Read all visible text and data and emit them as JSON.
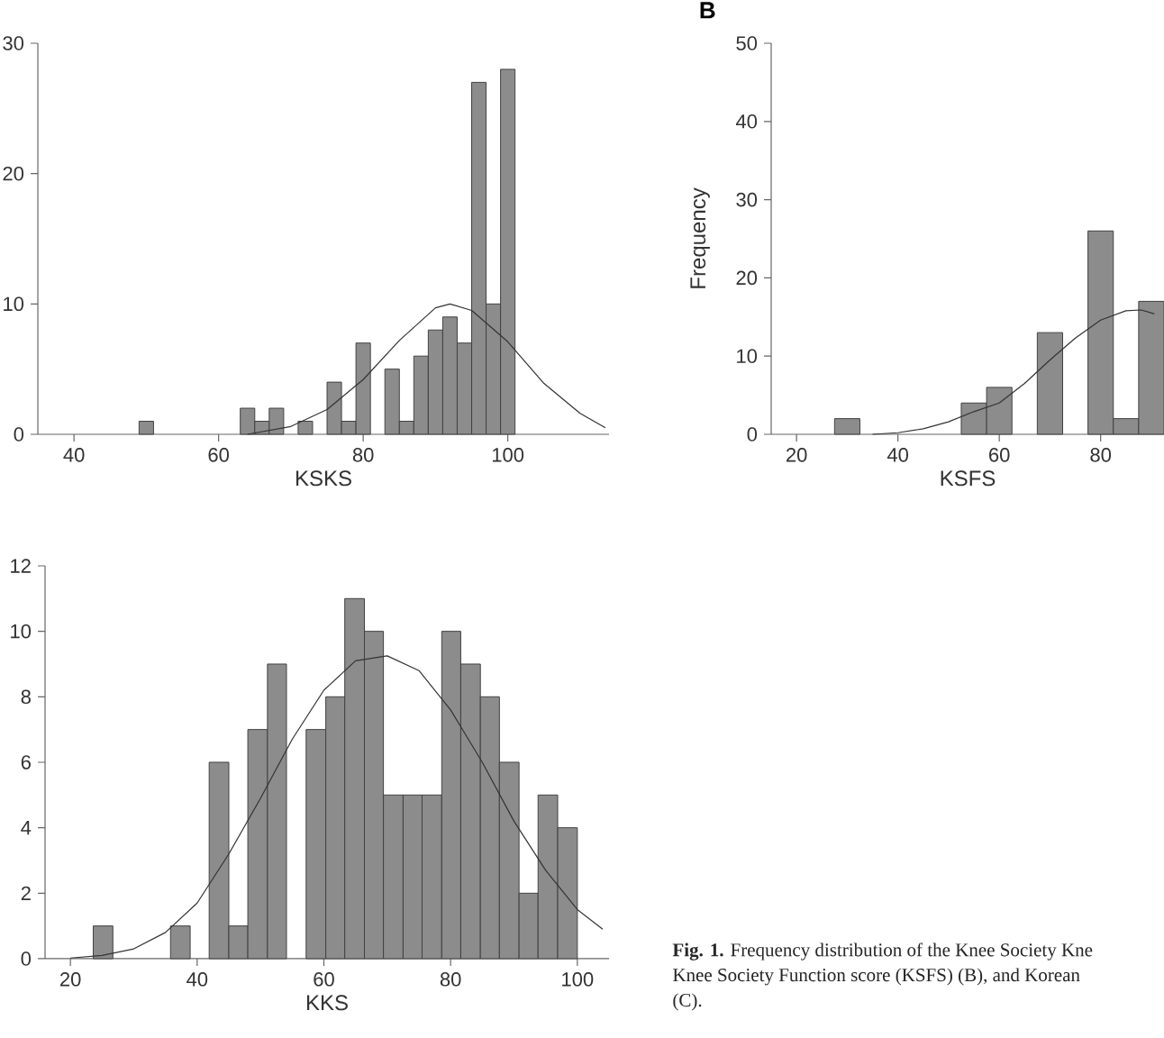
{
  "chart_data": [
    {
      "type": "histogram",
      "xlabel": "KSKS",
      "xlim": [
        35,
        114
      ],
      "xticks": [
        40,
        60,
        80,
        100
      ],
      "ylim": [
        0,
        30
      ],
      "yticks": [
        0,
        10,
        20,
        30
      ],
      "series": [
        {
          "color": "#8c8c8c",
          "bins": [
            49,
            51,
            63,
            65,
            67,
            69,
            71,
            73,
            75,
            77,
            79,
            81,
            83,
            85,
            87,
            89,
            91,
            93,
            95,
            97,
            99,
            101
          ],
          "values": [
            1,
            0,
            2,
            1,
            2,
            0,
            1,
            0,
            4,
            1,
            7,
            0,
            5,
            1,
            6,
            8,
            9,
            7,
            27,
            10,
            28
          ]
        },
        {
          "type": "line",
          "color": "#333333",
          "x": [
            64,
            66,
            70,
            75,
            80,
            85,
            90,
            92,
            95,
            100,
            105,
            110,
            113.5
          ],
          "values": [
            0,
            0.2,
            0.6,
            1.9,
            4.2,
            7.2,
            9.7,
            10,
            9.5,
            7.1,
            3.9,
            1.6,
            0.5
          ]
        }
      ]
    },
    {
      "type": "histogram",
      "title": "B",
      "xlabel": "KSFS",
      "ylabel": "Frequency",
      "xlim": [
        15,
        92.5
      ],
      "xticks": [
        20,
        40,
        60,
        80
      ],
      "ylim": [
        0,
        50
      ],
      "yticks": [
        0,
        10,
        20,
        30,
        40,
        50
      ],
      "series": [
        {
          "color": "#8c8c8c",
          "bins": [
            27.5,
            32.5,
            52.5,
            57.5,
            62.5,
            67.5,
            72.5,
            77.5,
            82.5,
            87.5,
            92.5
          ],
          "values": [
            2,
            0,
            4,
            6,
            0,
            13,
            0,
            26,
            2,
            17
          ]
        },
        {
          "type": "line",
          "color": "#333333",
          "x": [
            35,
            40,
            45,
            50,
            55,
            60,
            65,
            70,
            75,
            80,
            85,
            88,
            90.6
          ],
          "values": [
            0,
            0.2,
            0.7,
            1.6,
            2.9,
            4.0,
            6.5,
            9.5,
            12.3,
            14.6,
            15.8,
            15.9,
            15.4
          ]
        }
      ]
    },
    {
      "type": "histogram",
      "xlabel": "KKS",
      "xlim": [
        16,
        105
      ],
      "xticks": [
        20,
        40,
        60,
        80,
        100
      ],
      "ylim": [
        0,
        12
      ],
      "yticks": [
        0,
        2,
        4,
        6,
        8,
        10,
        12
      ],
      "annotations": [
        "**Fig. 1.** Frequency distribution of the Knee Society Kne",
        "Knee Society Function score (KSFS) (B), and Korean",
        "(C)."
      ],
      "series": [
        {
          "color": "#8c8c8c",
          "bins": [
            23.6,
            26.7,
            35.8,
            38.9,
            41.9,
            45.0,
            48.0,
            51.1,
            54.1,
            57.2,
            60.3,
            63.3,
            66.4,
            69.4,
            72.5,
            75.5,
            78.6,
            81.6,
            84.7,
            87.7,
            90.8,
            93.8,
            96.9,
            100.0
          ],
          "values": [
            1,
            0,
            1,
            0,
            6,
            1,
            7,
            9,
            0,
            7,
            8,
            11,
            10,
            5,
            5,
            5,
            10,
            9,
            8,
            6,
            2,
            5,
            4
          ]
        },
        {
          "type": "line",
          "color": "#333333",
          "x": [
            20,
            25,
            30,
            35,
            40,
            45,
            50,
            55,
            60,
            65,
            70,
            75,
            80,
            85,
            90,
            95,
            100,
            104
          ],
          "values": [
            0.02,
            0.1,
            0.3,
            0.8,
            1.7,
            3.2,
            4.9,
            6.7,
            8.2,
            9.1,
            9.25,
            8.8,
            7.6,
            6.0,
            4.2,
            2.7,
            1.5,
            0.9
          ]
        }
      ]
    }
  ]
}
